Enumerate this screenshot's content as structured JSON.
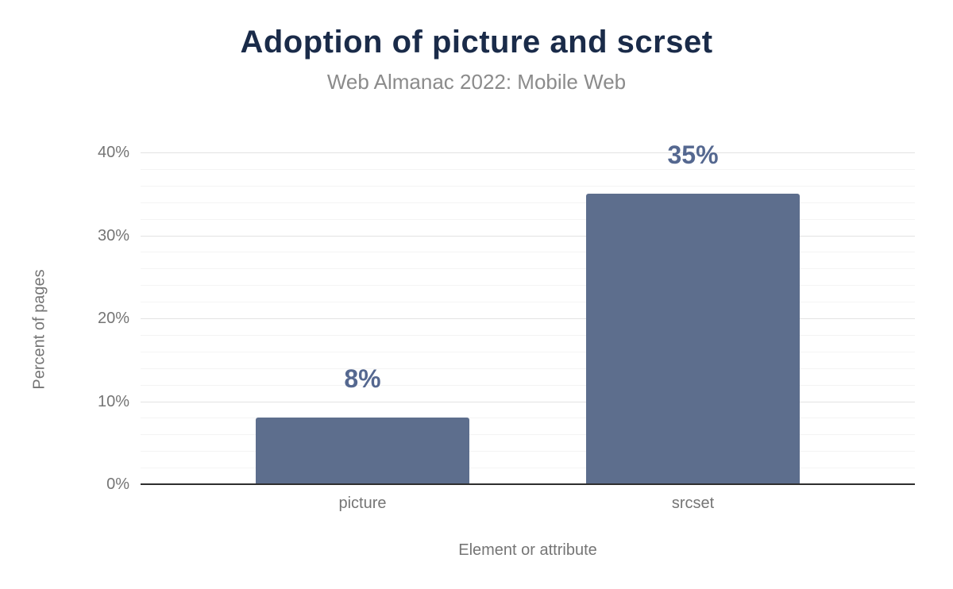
{
  "chart": {
    "title": "Adoption of picture and scrset",
    "subtitle": "Web Almanac 2022: Mobile Web"
  },
  "chart_data": {
    "type": "bar",
    "title": "Adoption of picture and scrset",
    "subtitle": "Web Almanac 2022: Mobile Web",
    "categories": [
      "picture",
      "srcset"
    ],
    "values": [
      8,
      35
    ],
    "value_labels": [
      "8%",
      "35%"
    ],
    "xlabel": "Element or attribute",
    "ylabel": "Percent of pages",
    "ylim": [
      0,
      40
    ],
    "yticks": [
      0,
      10,
      20,
      30,
      40
    ],
    "ytick_labels": [
      "0%",
      "10%",
      "20%",
      "30%",
      "40%"
    ],
    "minor_grid_step": 2,
    "major_grid_step": 10,
    "legend": "none",
    "grid": "horizontal",
    "colors": {
      "bar": "#5d6e8d",
      "value_label": "#556890",
      "title": "#1a2b49",
      "subtitle": "#8b8b8b",
      "axis_text": "#757575",
      "major_grid": "#e3e3e3",
      "minor_grid": "#f4f4f4",
      "axis_line": "#2e2e2e",
      "background": "#ffffff"
    }
  }
}
